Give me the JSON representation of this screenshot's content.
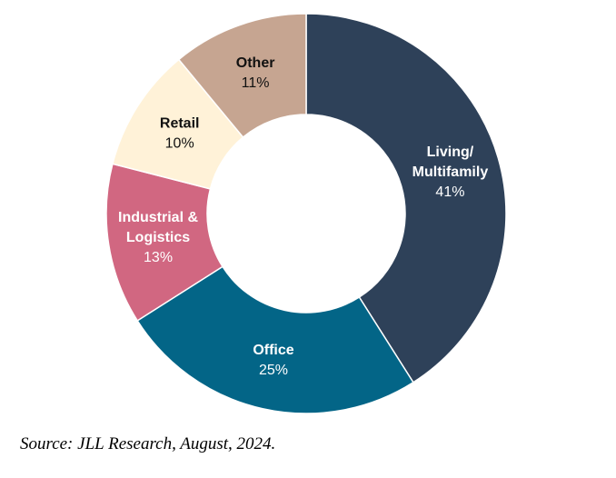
{
  "chart_data": {
    "type": "pie",
    "donut": true,
    "start": "top",
    "direction": "clockwise",
    "slices": [
      {
        "name_lines": [
          "Living/",
          "Multifamily"
        ],
        "value": 41,
        "label": "41%",
        "color": "#2e4159",
        "text_color": "#ffffff"
      },
      {
        "name_lines": [
          "Office"
        ],
        "value": 25,
        "label": "25%",
        "color": "#036587",
        "text_color": "#ffffff"
      },
      {
        "name_lines": [
          "Industrial &",
          "Logistics"
        ],
        "value": 13,
        "label": "13%",
        "color": "#d16781",
        "text_color": "#ffffff"
      },
      {
        "name_lines": [
          "Retail"
        ],
        "value": 10,
        "label": "10%",
        "color": "#fff2d8",
        "text_color": "#111111"
      },
      {
        "name_lines": [
          "Other"
        ],
        "value": 11,
        "label": "11%",
        "color": "#c6a591",
        "text_color": "#111111"
      }
    ]
  },
  "source": "Source: JLL Research, August, 2024."
}
